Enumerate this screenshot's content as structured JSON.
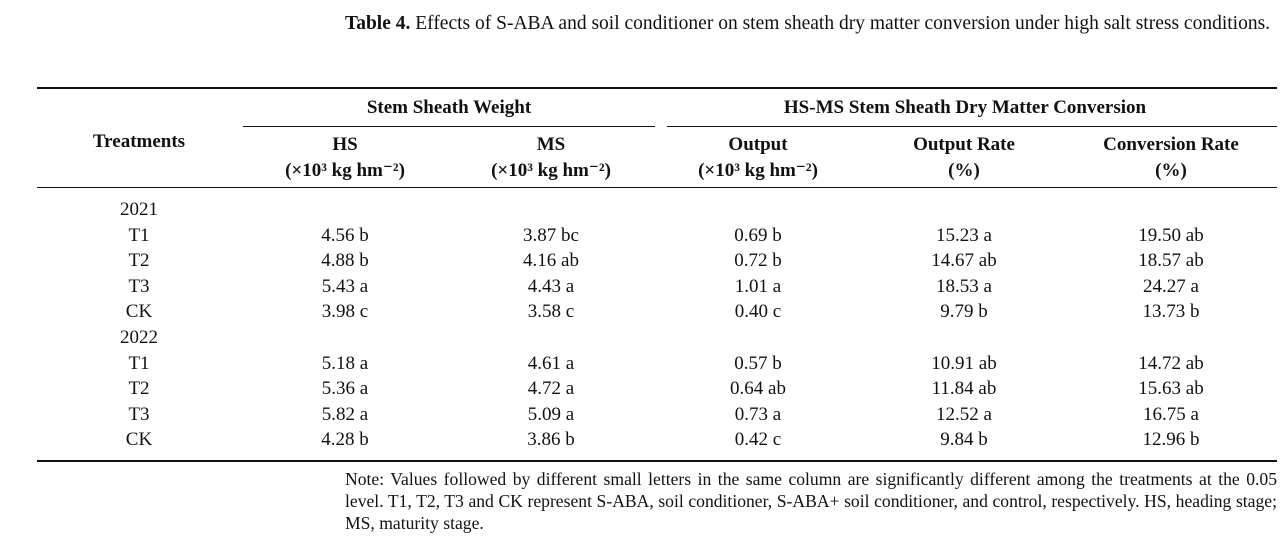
{
  "caption": {
    "label": "Table 4.",
    "text": "Effects of S-ABA and soil conditioner on stem sheath dry matter conversion under high salt stress conditions."
  },
  "table": {
    "row_header": "Treatments",
    "header_groups": [
      "Stem Sheath Weight",
      "HS-MS Stem Sheath Dry Matter Conversion"
    ],
    "columns": [
      {
        "name": "HS",
        "unit": "(×10³ kg hm⁻²)"
      },
      {
        "name": "MS",
        "unit": "(×10³ kg hm⁻²)"
      },
      {
        "name": "Output",
        "unit": "(×10³ kg hm⁻²)"
      },
      {
        "name": "Output Rate",
        "unit": "(%)"
      },
      {
        "name": "Conversion Rate",
        "unit": "(%)"
      }
    ],
    "sections": [
      {
        "year": "2021",
        "rows": [
          [
            "T1",
            "4.56 b",
            "3.87 bc",
            "0.69 b",
            "15.23 a",
            "19.50 ab"
          ],
          [
            "T2",
            "4.88 b",
            "4.16 ab",
            "0.72 b",
            "14.67 ab",
            "18.57 ab"
          ],
          [
            "T3",
            "5.43 a",
            "4.43 a",
            "1.01 a",
            "18.53 a",
            "24.27 a"
          ],
          [
            "CK",
            "3.98 c",
            "3.58 c",
            "0.40 c",
            "9.79 b",
            "13.73 b"
          ]
        ]
      },
      {
        "year": "2022",
        "rows": [
          [
            "T1",
            "5.18 a",
            "4.61 a",
            "0.57 b",
            "10.91 ab",
            "14.72 ab"
          ],
          [
            "T2",
            "5.36 a",
            "4.72 a",
            "0.64 ab",
            "11.84 ab",
            "15.63 ab"
          ],
          [
            "T3",
            "5.82 a",
            "5.09 a",
            "0.73 a",
            "12.52 a",
            "16.75 a"
          ],
          [
            "CK",
            "4.28 b",
            "3.86 b",
            "0.42 c",
            "9.84 b",
            "12.96 b"
          ]
        ]
      }
    ]
  },
  "note": "Note: Values followed by different small letters in the same column are significantly different among the treatments at the 0.05 level. T1, T2, T3 and CK represent S-ABA, soil conditioner, S-ABA+ soil conditioner, and control, respectively. HS, heading stage; MS, maturity stage."
}
